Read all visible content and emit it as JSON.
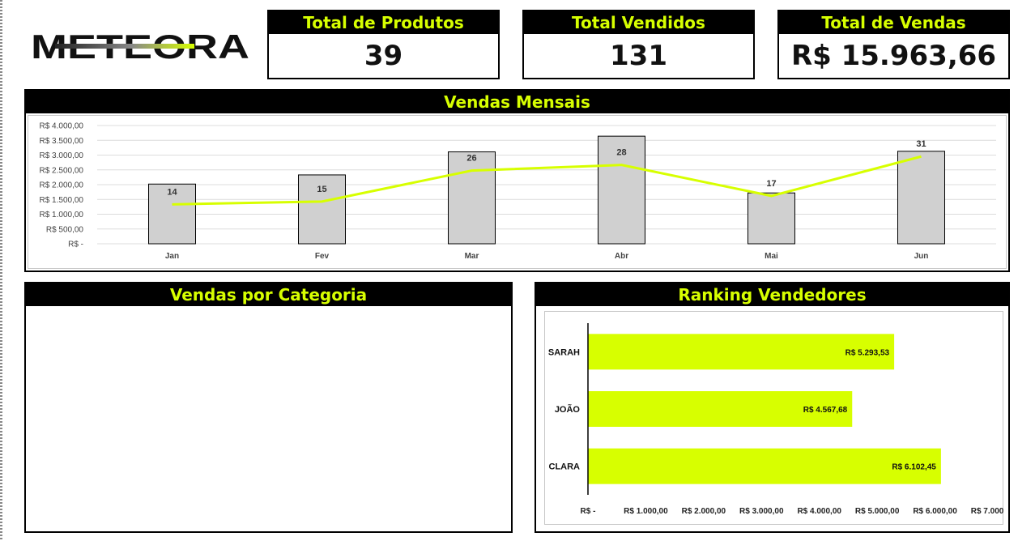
{
  "logo": {
    "text": "METEORA"
  },
  "kpis": [
    {
      "title": "Total de Produtos",
      "value": "39"
    },
    {
      "title": "Total Vendidos",
      "value": "131"
    },
    {
      "title": "Total de Vendas",
      "value": "R$ 15.963,66"
    }
  ],
  "panels": {
    "monthly": {
      "title": "Vendas Mensais"
    },
    "category": {
      "title": "Vendas por Categoria"
    },
    "ranking": {
      "title": "Ranking Vendedores"
    }
  },
  "colors": {
    "accent": "#d7ff00",
    "bar_fill": "#d0d0d0",
    "header_bg": "#000000"
  },
  "chart_data": [
    {
      "type": "bar",
      "title": "Vendas Mensais",
      "categories": [
        "Jan",
        "Fev",
        "Mar",
        "Abr",
        "Mai",
        "Jun"
      ],
      "y_ticks": [
        "R$ -",
        "R$ 500,00",
        "R$ 1.000,00",
        "R$ 1.500,00",
        "R$ 2.000,00",
        "R$ 2.500,00",
        "R$ 3.000,00",
        "R$ 3.500,00",
        "R$ 4.000,00"
      ],
      "ylim": [
        0,
        4000
      ],
      "grid": true,
      "series": [
        {
          "values": [
            2020,
            2330,
            3110,
            3640,
            1720,
            3130
          ]
        },
        {
          "values": [
            14,
            15,
            26,
            28,
            17,
            31
          ],
          "data_labels": [
            "14",
            "15",
            "26",
            "28",
            "17",
            "31"
          ],
          "ylim": [
            0,
            42
          ]
        }
      ]
    },
    {
      "type": "bar",
      "orientation": "horizontal",
      "title": "Ranking Vendedores",
      "categories": [
        "SARAH",
        "JOÃO",
        "CLARA"
      ],
      "values": [
        5293.53,
        4567.68,
        6102.45
      ],
      "data_labels": [
        "R$ 5.293,53",
        "R$ 4.567,68",
        "R$ 6.102,45"
      ],
      "x_ticks": [
        "R$ -",
        "R$ 1.000,00",
        "R$ 2.000,00",
        "R$ 3.000,00",
        "R$ 4.000,00",
        "R$ 5.000,00",
        "R$ 6.000,00",
        "R$ 7.000,00"
      ],
      "xlim": [
        0,
        7000
      ]
    }
  ]
}
